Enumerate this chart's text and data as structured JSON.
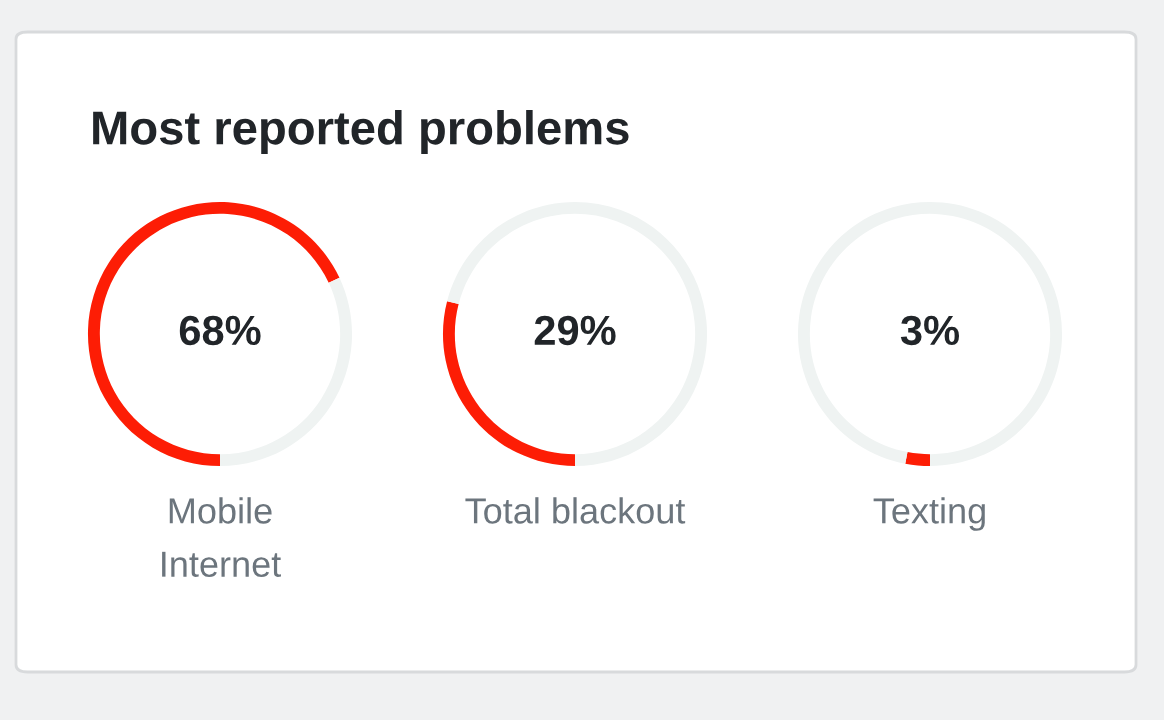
{
  "chart_data": [
    {
      "type": "donut",
      "title": "Most reported problems",
      "categories": [
        "Mobile\nInternet",
        null
      ],
      "values": [
        68,
        32
      ],
      "colors": [
        "#fd1d05",
        "#eff3f2"
      ],
      "annotations": [
        "68%"
      ]
    },
    {
      "type": "donut",
      "categories": [
        "Total blackout",
        null
      ],
      "values": [
        29,
        71
      ],
      "colors": [
        "#fd1d05",
        "#eff3f2"
      ],
      "annotations": [
        "29%"
      ]
    },
    {
      "type": "donut",
      "categories": [
        "Texting",
        null
      ],
      "values": [
        3,
        97
      ],
      "colors": [
        "#fd1d05",
        "#eff3f2"
      ],
      "annotations": [
        "3%"
      ]
    }
  ]
}
